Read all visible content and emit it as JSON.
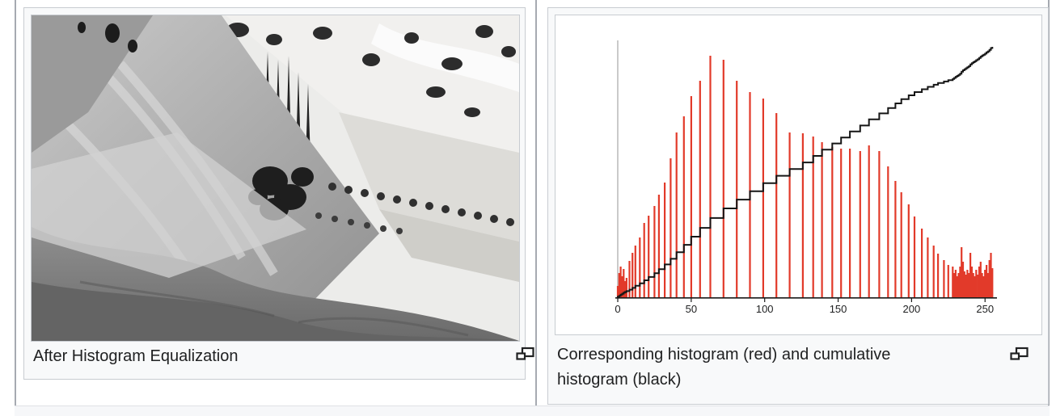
{
  "page": {
    "background": "#ffffff",
    "frame_border_color": "#a6aab1",
    "thumb_border_color": "#c8ccd1",
    "thumb_background": "#f8f9fa",
    "caption_color": "#202122"
  },
  "figures": {
    "left": {
      "caption": "After Histogram Equalization",
      "image_description": "grayscale aerial landscape: hillside, trees, fields",
      "magnify_icon": "magnify-icon"
    },
    "right": {
      "caption": "Corresponding histogram (red) and cumulative histogram (black)",
      "magnify_icon": "magnify-icon"
    }
  },
  "chart_data": {
    "type": "bar",
    "title": "",
    "xlabel": "",
    "ylabel": "",
    "xlim": [
      0,
      256
    ],
    "x_ticks": [
      0,
      50,
      100,
      150,
      200,
      250
    ],
    "grid": false,
    "legend_position": "none",
    "axis_colors": {
      "x_axis": "#1a1a1a",
      "y_axis": "#bdbdbd"
    },
    "series": [
      {
        "name": "histogram",
        "type": "bar",
        "color": "#e23a2a",
        "points_format": "[intensity 0-255, relative height px]",
        "points": [
          [
            0,
            14
          ],
          [
            1,
            30
          ],
          [
            2,
            38
          ],
          [
            3,
            26
          ],
          [
            4,
            35
          ],
          [
            5,
            20
          ],
          [
            6,
            24
          ],
          [
            8,
            45
          ],
          [
            10,
            55
          ],
          [
            12,
            64
          ],
          [
            15,
            74
          ],
          [
            18,
            92
          ],
          [
            21,
            101
          ],
          [
            25,
            113
          ],
          [
            28,
            127
          ],
          [
            32,
            142
          ],
          [
            36,
            172
          ],
          [
            40,
            204
          ],
          [
            45,
            224
          ],
          [
            50,
            249
          ],
          [
            56,
            268
          ],
          [
            63,
            299
          ],
          [
            72,
            294
          ],
          [
            81,
            268
          ],
          [
            90,
            254
          ],
          [
            99,
            246
          ],
          [
            108,
            228
          ],
          [
            117,
            204
          ],
          [
            126,
            203
          ],
          [
            133,
            199
          ],
          [
            139,
            192
          ],
          [
            146,
            186
          ],
          [
            152,
            184
          ],
          [
            158,
            184
          ],
          [
            165,
            181
          ],
          [
            171,
            188
          ],
          [
            178,
            181
          ],
          [
            184,
            162
          ],
          [
            189,
            144
          ],
          [
            193,
            130
          ],
          [
            198,
            115
          ],
          [
            202,
            100
          ],
          [
            207,
            85
          ],
          [
            211,
            74
          ],
          [
            215,
            64
          ],
          [
            218,
            54
          ],
          [
            222,
            46
          ],
          [
            225,
            40
          ],
          [
            228,
            38
          ],
          [
            229,
            30
          ],
          [
            230,
            34
          ],
          [
            231,
            26
          ],
          [
            232,
            30
          ],
          [
            233,
            38
          ],
          [
            234,
            62
          ],
          [
            235,
            44
          ],
          [
            236,
            32
          ],
          [
            237,
            28
          ],
          [
            238,
            34
          ],
          [
            239,
            30
          ],
          [
            240,
            55
          ],
          [
            241,
            38
          ],
          [
            242,
            30
          ],
          [
            243,
            26
          ],
          [
            244,
            34
          ],
          [
            245,
            28
          ],
          [
            246,
            38
          ],
          [
            247,
            44
          ],
          [
            248,
            30
          ],
          [
            249,
            26
          ],
          [
            250,
            34
          ],
          [
            251,
            40
          ],
          [
            252,
            30
          ],
          [
            253,
            46
          ],
          [
            254,
            55
          ],
          [
            255,
            36
          ]
        ]
      },
      {
        "name": "cumulative histogram",
        "type": "line",
        "color": "#161616",
        "definition": "running sum of histogram series, step line rising to top-right"
      }
    ]
  }
}
